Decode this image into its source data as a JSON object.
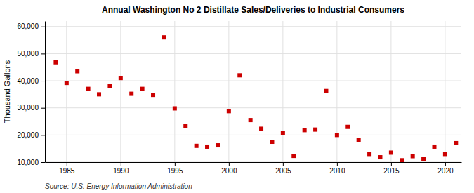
{
  "chart_data": {
    "type": "scatter",
    "title": "Annual Washington No 2 Distillate Sales/Deliveries to Industrial Consumers",
    "ylabel": "Thousand  Gallons",
    "annotation": "Source: U.S. Energy Information Administration",
    "color": "#cc0000",
    "marker": "square",
    "grid": true,
    "xlim": [
      1983,
      2021.5
    ],
    "ylim": [
      10000,
      62000
    ],
    "xticks": [
      1985,
      1990,
      1995,
      2000,
      2005,
      2010,
      2015,
      2020
    ],
    "yticks": [
      {
        "value": 10000,
        "label": "10,000"
      },
      {
        "value": 20000,
        "label": "20,000"
      },
      {
        "value": 30000,
        "label": "30,000"
      },
      {
        "value": 40000,
        "label": "40,000"
      },
      {
        "value": 50000,
        "label": "50,000"
      },
      {
        "value": 60000,
        "label": "60,000"
      }
    ],
    "x": [
      1984,
      1985,
      1986,
      1987,
      1988,
      1989,
      1990,
      1991,
      1992,
      1993,
      1994,
      1995,
      1996,
      1997,
      1998,
      1999,
      2000,
      2001,
      2002,
      2003,
      2004,
      2005,
      2006,
      2007,
      2008,
      2009,
      2010,
      2011,
      2012,
      2013,
      2014,
      2015,
      2016,
      2017,
      2018,
      2019,
      2020,
      2021
    ],
    "values": [
      46800,
      39200,
      43500,
      37000,
      35000,
      38000,
      41000,
      35200,
      37000,
      34800,
      56000,
      29800,
      23200,
      16000,
      15700,
      16200,
      28800,
      42000,
      25500,
      22300,
      17500,
      20700,
      12300,
      21800,
      22000,
      36200,
      20000,
      23000,
      18200,
      13000,
      11800,
      13500,
      10700,
      12200,
      11200,
      15700,
      13000,
      17000
    ]
  }
}
